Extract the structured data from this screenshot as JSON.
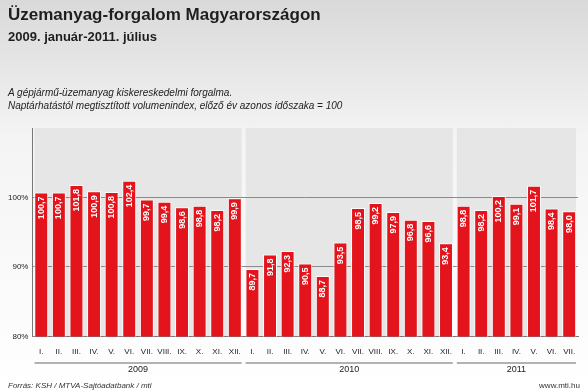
{
  "chart_data": {
    "type": "bar",
    "title": "Üzemanyag-forgalom Magyarországon",
    "subtitle": "2009. január-2011. július",
    "annotations": [
      "A gépjármű-üzemanyag kiskereskedelmi forgalma.",
      "Naptárhatástól megtisztított volumenindex, előző év azonos időszaka = 100",
      "Forrás: KSH / MTVA-Sajtóadatbank / mti",
      "www.mti.hu"
    ],
    "categories": [
      "I.",
      "II.",
      "III.",
      "IV.",
      "V.",
      "VI.",
      "VII.",
      "VIII.",
      "IX.",
      "X.",
      "XI.",
      "XII.",
      "I.",
      "II.",
      "III.",
      "IV.",
      "V.",
      "VI.",
      "VII.",
      "VIII.",
      "IX.",
      "X.",
      "XI.",
      "XII.",
      "I.",
      "II.",
      "III.",
      "IV.",
      "V.",
      "VI.",
      "VII."
    ],
    "groups": [
      {
        "label": "2009",
        "months": 12
      },
      {
        "label": "2010",
        "months": 12
      },
      {
        "label": "2011",
        "months": 7
      }
    ],
    "values": [
      100.7,
      100.7,
      101.8,
      100.9,
      100.8,
      102.4,
      99.7,
      99.4,
      98.6,
      98.8,
      98.2,
      99.9,
      89.7,
      91.8,
      92.3,
      90.5,
      88.7,
      93.5,
      98.5,
      99.2,
      97.9,
      96.8,
      96.6,
      93.4,
      98.8,
      98.2,
      100.2,
      99.1,
      101.7,
      98.4,
      98.0
    ],
    "value_labels": [
      "100,7",
      "100,7",
      "101,8",
      "100,9",
      "100,8",
      "102,4",
      "99,7",
      "99,4",
      "98,6",
      "98,8",
      "98,2",
      "99,9",
      "89,7",
      "91,8",
      "92,3",
      "90,5",
      "88,7",
      "93,5",
      "98,5",
      "99,2",
      "97,9",
      "96,8",
      "96,6",
      "93,4",
      "98,8",
      "98,2",
      "100,2",
      "99,1",
      "101,7",
      "98,4",
      "98,0"
    ],
    "color": "#e3141b",
    "ylim": [
      80,
      110
    ],
    "yticks": [
      {
        "value": 80,
        "label": "80%"
      },
      {
        "value": 90,
        "label": "90%"
      },
      {
        "value": 100,
        "label": "100%"
      }
    ],
    "grid": true,
    "data_labels": true
  }
}
